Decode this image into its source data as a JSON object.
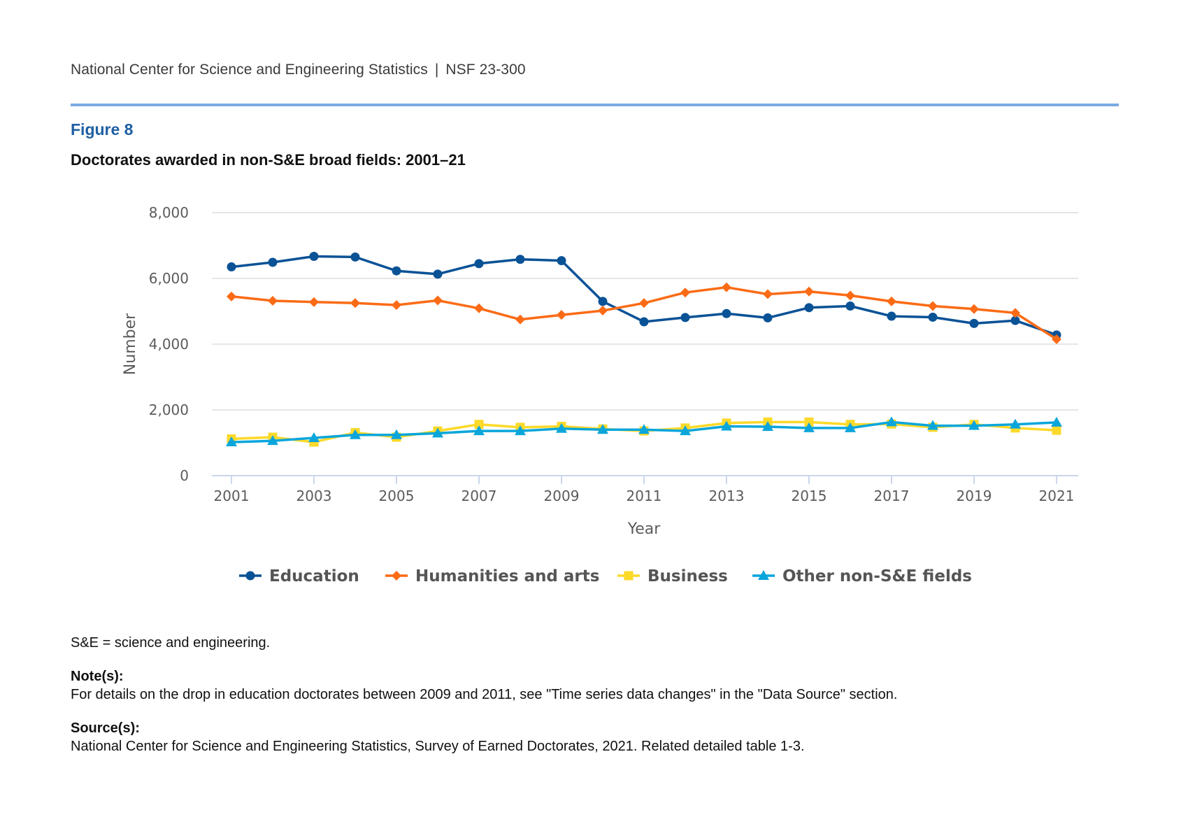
{
  "header": {
    "org": "National Center for Science and Engineering Statistics",
    "separator": "|",
    "report_id": "NSF 23-300"
  },
  "figure": {
    "label": "Figure 8",
    "title": "Doctorates awarded in non-S&E broad fields: 2001–21"
  },
  "notes": {
    "abbrev": "S&E = science and engineering.",
    "note_label": "Note(s):",
    "note_text": "For details on the drop in education doctorates between 2009 and 2011, see \"Time series data changes\" in the \"Data Source\" section.",
    "source_label": "Source(s):",
    "source_text": "National Center for Science and Engineering Statistics, Survey of Earned Doctorates, 2021. Related detailed table 1-3."
  },
  "chart_data": {
    "type": "line",
    "title": "Doctorates awarded in non-S&E broad fields: 2001–21",
    "xlabel": "Year",
    "ylabel": "Number",
    "ylim": [
      0,
      8000
    ],
    "yticks": [
      0,
      2000,
      4000,
      6000,
      8000
    ],
    "ytick_labels": [
      "0",
      "2,000",
      "4,000",
      "6,000",
      "8,000"
    ],
    "xticks": [
      2001,
      2003,
      2005,
      2007,
      2009,
      2011,
      2013,
      2015,
      2017,
      2019,
      2021
    ],
    "xtick_labels": [
      "2001",
      "2003",
      "2005",
      "2007",
      "2009",
      "2011",
      "2013",
      "2015",
      "2017",
      "2019",
      "2021"
    ],
    "x": [
      2001,
      2002,
      2003,
      2004,
      2005,
      2006,
      2007,
      2008,
      2009,
      2010,
      2011,
      2012,
      2013,
      2014,
      2015,
      2016,
      2017,
      2018,
      2019,
      2020,
      2021
    ],
    "grid": "horizontal",
    "legend_position": "bottom-center",
    "series": [
      {
        "name": "Education",
        "color": "#0a5296",
        "marker": "circle",
        "values": [
          6350,
          6490,
          6670,
          6650,
          6230,
          6130,
          6450,
          6580,
          6540,
          5300,
          4680,
          4810,
          4930,
          4800,
          5110,
          5160,
          4850,
          4820,
          4630,
          4720,
          4280
        ]
      },
      {
        "name": "Humanities and arts",
        "color": "#fb6b16",
        "marker": "diamond",
        "values": [
          5450,
          5320,
          5280,
          5250,
          5190,
          5330,
          5090,
          4750,
          4890,
          5020,
          5250,
          5570,
          5730,
          5520,
          5600,
          5480,
          5300,
          5160,
          5070,
          4950,
          4150
        ]
      },
      {
        "name": "Business",
        "color": "#fdd929",
        "marker": "square",
        "values": [
          1120,
          1170,
          1020,
          1310,
          1170,
          1360,
          1560,
          1470,
          1500,
          1420,
          1360,
          1450,
          1600,
          1630,
          1630,
          1560,
          1570,
          1470,
          1560,
          1450,
          1380
        ]
      },
      {
        "name": "Other non-S&E fields",
        "color": "#0aa6db",
        "marker": "triangle",
        "values": [
          1020,
          1060,
          1150,
          1240,
          1240,
          1290,
          1360,
          1360,
          1430,
          1400,
          1400,
          1360,
          1500,
          1490,
          1450,
          1450,
          1630,
          1520,
          1520,
          1560,
          1620
        ]
      }
    ]
  }
}
